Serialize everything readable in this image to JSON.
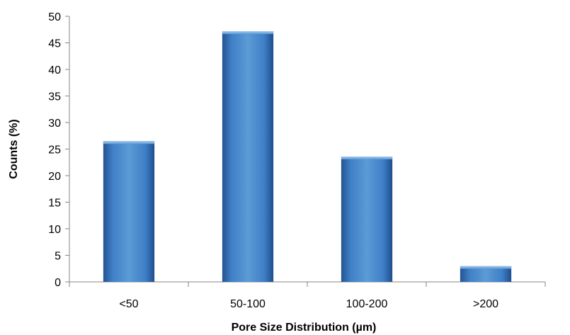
{
  "chart_data": {
    "type": "bar",
    "title": "",
    "xlabel": "Pore Size Distribution (µm)",
    "ylabel": "Counts (%)",
    "categories": [
      "<50",
      "50-100",
      "100-200",
      ">200"
    ],
    "values": [
      26.5,
      47.2,
      23.6,
      3.0
    ],
    "ylim": [
      0,
      50
    ],
    "yticks": [
      0,
      5,
      10,
      15,
      20,
      25,
      30,
      35,
      40,
      45,
      50
    ],
    "ytick_labels": [
      "0",
      "5",
      "10",
      "15",
      "20",
      "25",
      "30",
      "35",
      "40",
      "45",
      "50"
    ],
    "grid": false,
    "legend": "none",
    "colors": {
      "bar_light": "#5b9bd5",
      "bar_mid": "#3f7fc7",
      "bar_dark": "#1f4e8c",
      "axis": "#868686"
    }
  }
}
